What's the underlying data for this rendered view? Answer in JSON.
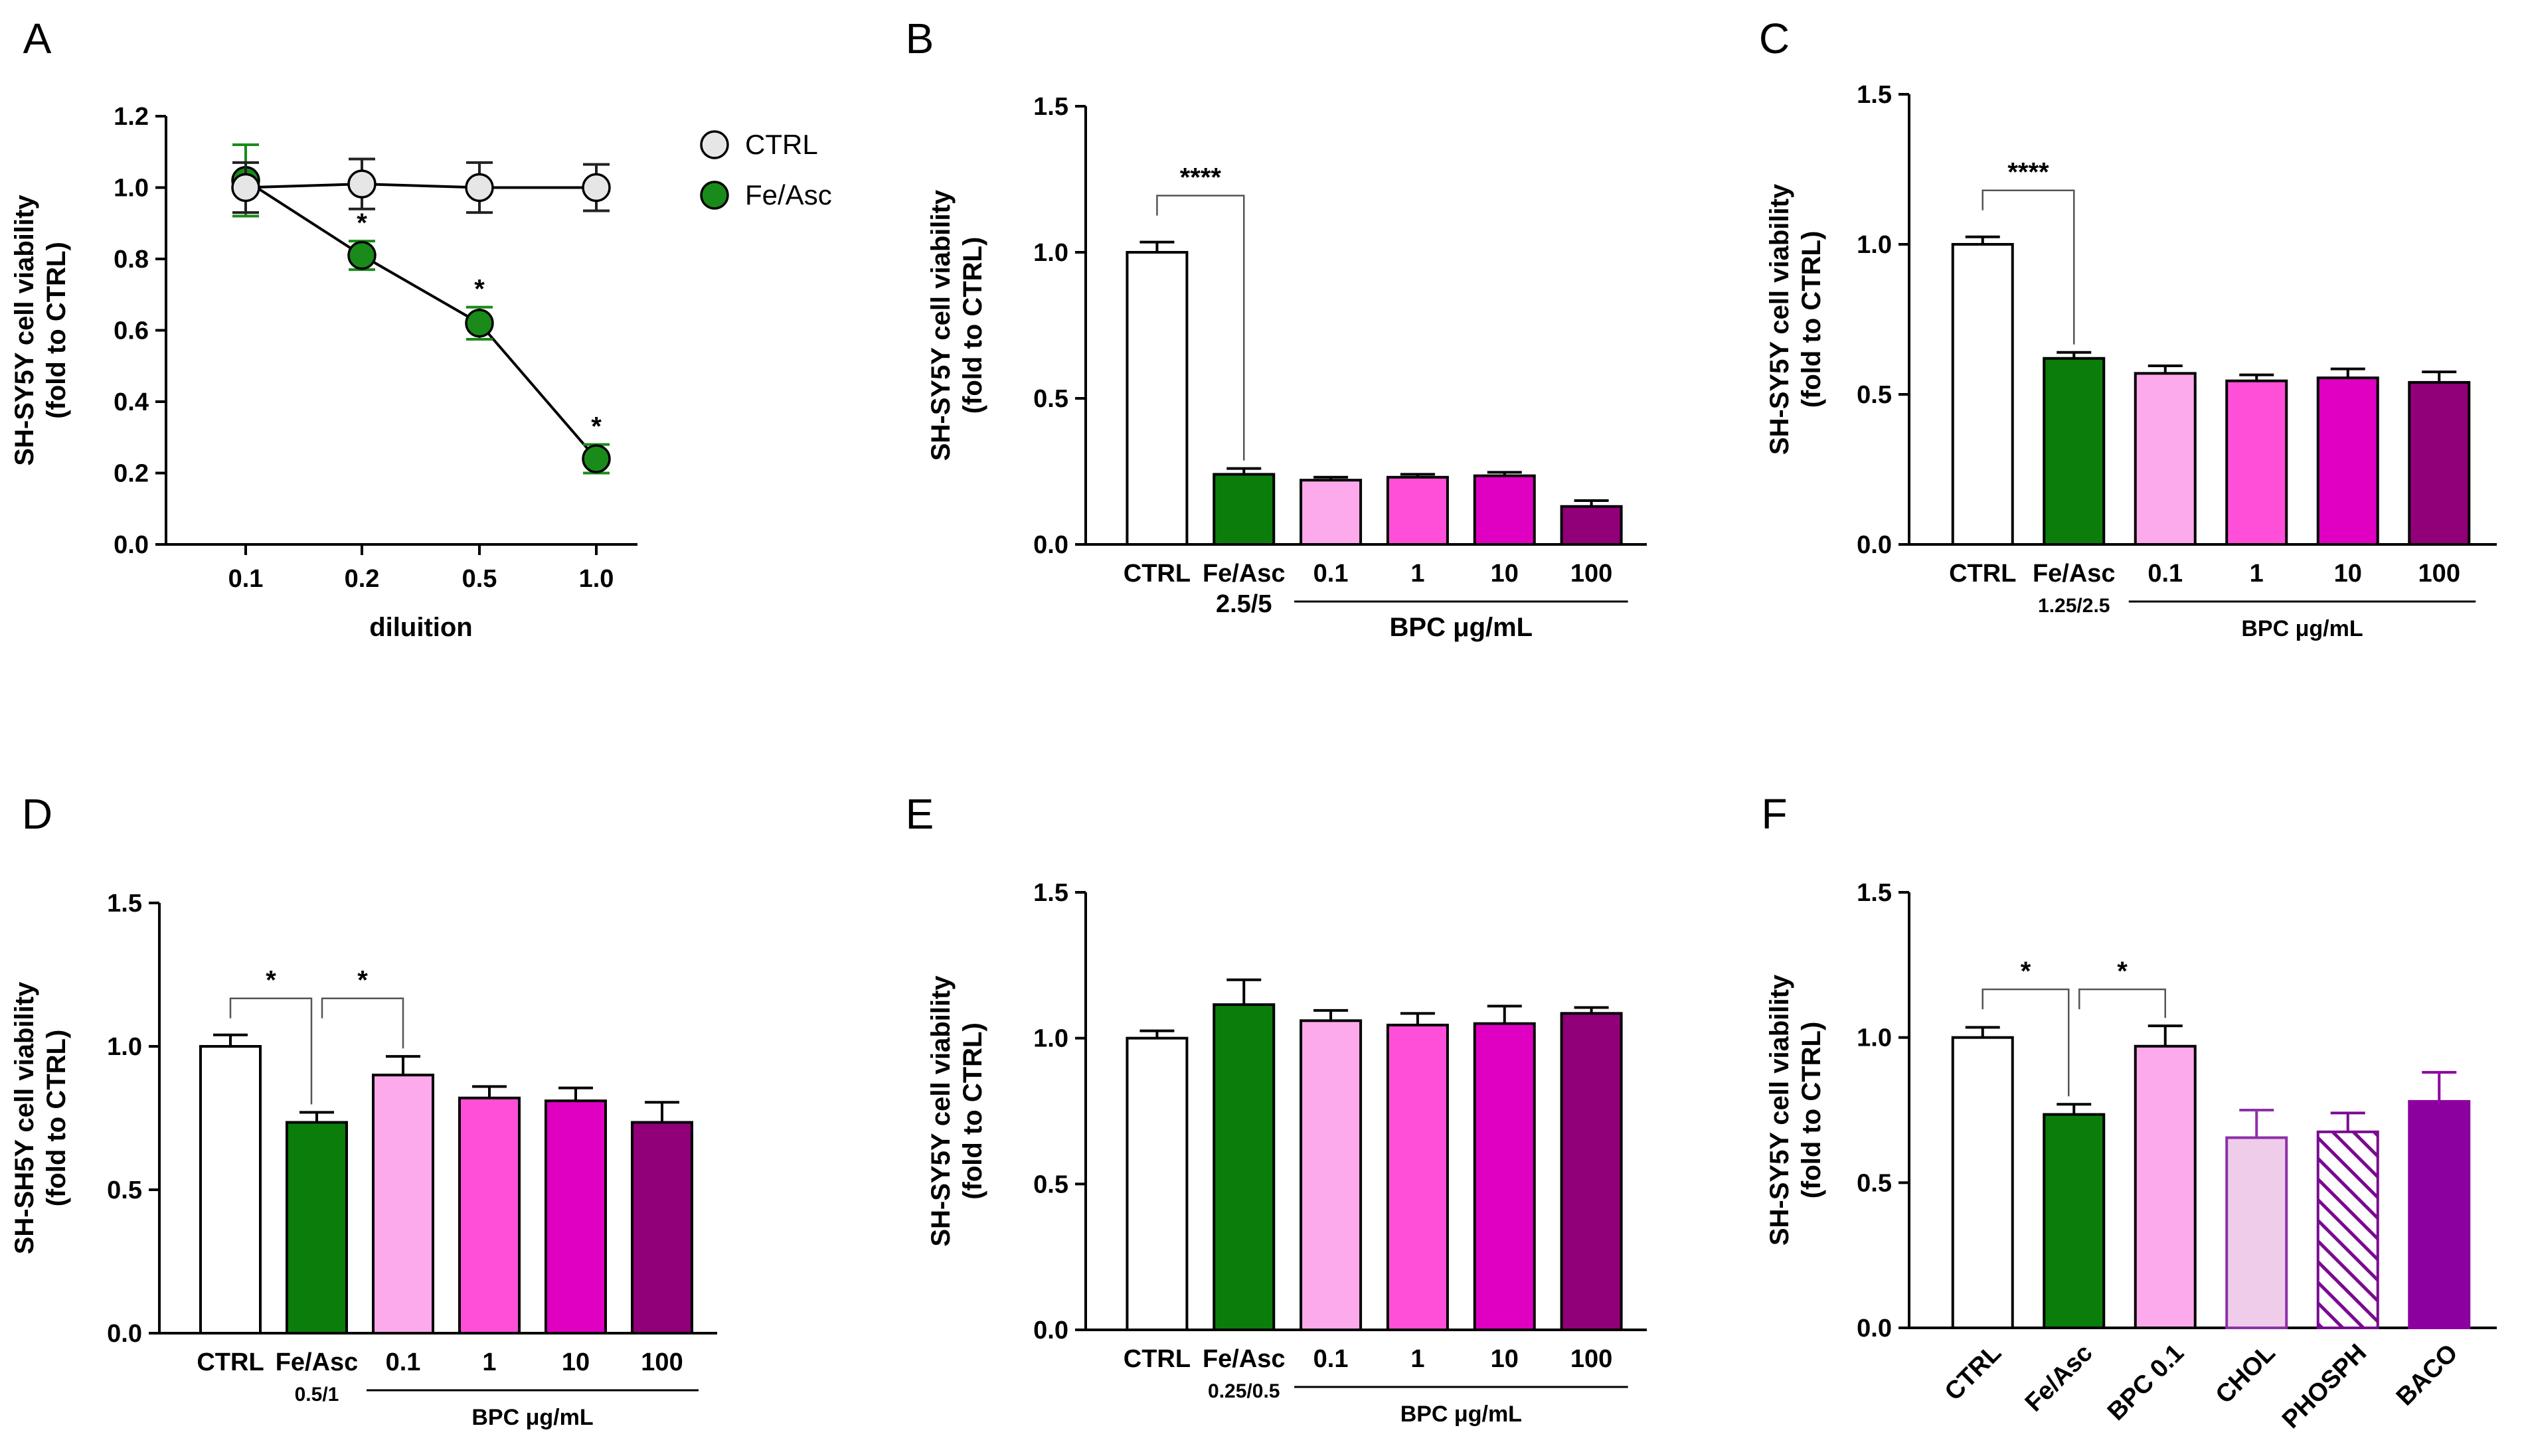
{
  "chart_data": [
    {
      "panel": "A",
      "type": "line",
      "ylabel_lines": [
        "SH-SY5Y cell viability",
        "(fold to CTRL)"
      ],
      "xlabel": "diluition",
      "x": [
        "0.1",
        "0.2",
        "0.5",
        "1.0"
      ],
      "ylim": [
        0,
        1.2
      ],
      "yticks": [
        "0.0",
        "0.2",
        "0.4",
        "0.6",
        "0.8",
        "1.0",
        "1.2"
      ],
      "series": [
        {
          "name": "CTRL",
          "values": [
            1.0,
            1.01,
            1.0,
            1.0
          ],
          "errors": [
            0.07,
            0.07,
            0.07,
            0.065
          ],
          "color": "#e6e6e6"
        },
        {
          "name": "Fe/Asc",
          "values": [
            1.02,
            0.81,
            0.62,
            0.24
          ],
          "errors": [
            0.1,
            0.04,
            0.045,
            0.04
          ],
          "color": "#1a8a1a",
          "marks": [
            "",
            "*",
            "*",
            "*"
          ]
        }
      ]
    },
    {
      "panel": "B",
      "type": "bar",
      "ylabel_lines": [
        "SH-SY5Y cell viability",
        "(fold to CTRL)"
      ],
      "ylim": [
        0,
        1.5
      ],
      "yticks": [
        "0.0",
        "0.5",
        "1.0",
        "1.5"
      ],
      "categories": [
        "CTRL",
        "Fe/Asc",
        "0.1",
        "1",
        "10",
        "100"
      ],
      "sublabel": "2.5/5",
      "group_label": "BPC μg/mL",
      "values": [
        1.0,
        0.24,
        0.22,
        0.23,
        0.235,
        0.13
      ],
      "errors": [
        0.035,
        0.02,
        0.01,
        0.01,
        0.012,
        0.02
      ],
      "sig": [
        {
          "from": 0,
          "to": 1,
          "label": "****"
        }
      ]
    },
    {
      "panel": "C",
      "type": "bar",
      "ylabel_lines": [
        "SH-SY5Y cell viability",
        "(fold to CTRL)"
      ],
      "ylim": [
        0,
        1.5
      ],
      "yticks": [
        "0.0",
        "0.5",
        "1.0",
        "1.5"
      ],
      "categories": [
        "CTRL",
        "Fe/Asc",
        "0.1",
        "1",
        "10",
        "100"
      ],
      "sublabel": "1.25/2.5",
      "group_label": "BPC μg/mL",
      "values": [
        1.0,
        0.62,
        0.57,
        0.545,
        0.555,
        0.54
      ],
      "errors": [
        0.025,
        0.02,
        0.025,
        0.02,
        0.03,
        0.035
      ],
      "sig": [
        {
          "from": 0,
          "to": 1,
          "label": "****"
        }
      ]
    },
    {
      "panel": "D",
      "type": "bar",
      "ylabel_lines": [
        "SH-SH5Y cell viability",
        "(fold to CTRL)"
      ],
      "ylim": [
        0,
        1.5
      ],
      "yticks": [
        "0.0",
        "0.5",
        "1.0",
        "1.5"
      ],
      "categories": [
        "CTRL",
        "Fe/Asc",
        "0.1",
        "1",
        "10",
        "100"
      ],
      "sublabel": "0.5/1",
      "group_label": "BPC μg/mL",
      "values": [
        1.0,
        0.735,
        0.9,
        0.82,
        0.81,
        0.735
      ],
      "errors": [
        0.04,
        0.035,
        0.065,
        0.04,
        0.045,
        0.07
      ],
      "sig": [
        {
          "from": 0,
          "to": 1,
          "label": "*"
        },
        {
          "from": 1,
          "to": 2,
          "label": "*"
        }
      ]
    },
    {
      "panel": "E",
      "type": "bar",
      "ylabel_lines": [
        "SH-SY5Y cell viability",
        "(fold to CTRL)"
      ],
      "ylim": [
        0,
        1.5
      ],
      "yticks": [
        "0.0",
        "0.5",
        "1.0",
        "1.5"
      ],
      "categories": [
        "CTRL",
        "Fe/Asc",
        "0.1",
        "1",
        "10",
        "100"
      ],
      "sublabel": "0.25/0.5",
      "group_label": "BPC μg/mL",
      "values": [
        1.0,
        1.115,
        1.06,
        1.045,
        1.05,
        1.085
      ],
      "errors": [
        0.025,
        0.085,
        0.035,
        0.04,
        0.06,
        0.02
      ],
      "sig": []
    },
    {
      "panel": "F",
      "type": "bar",
      "ylabel_lines": [
        "SH-SY5Y cell viability",
        "(fold to CTRL)"
      ],
      "ylim": [
        0,
        1.5
      ],
      "yticks": [
        "0.0",
        "0.5",
        "1.0",
        "1.5"
      ],
      "categories": [
        "CTRL",
        "Fe/Asc",
        "BPC 0.1",
        "CHOL",
        "PHOSPH",
        "BACO"
      ],
      "values": [
        1.0,
        0.735,
        0.97,
        0.655,
        0.675,
        0.78
      ],
      "errors": [
        0.035,
        0.035,
        0.07,
        0.095,
        0.065,
        0.1
      ],
      "sig": [
        {
          "from": 0,
          "to": 1,
          "label": "*"
        },
        {
          "from": 1,
          "to": 2,
          "label": "*"
        }
      ]
    }
  ],
  "colors": {
    "ctrl": "#ffffff",
    "fe": "#0b7d0b",
    "bpc01": "#fdaaec",
    "bpc1": "#ff4fd8",
    "bpc10": "#e000c2",
    "bpc100": "#910079",
    "chol": "#efcdea",
    "phosph_stroke": "#7a0a90",
    "baco": "#8d00a0",
    "line_ctrl": "#e6e6e6",
    "line_fe": "#1a8a1a"
  }
}
